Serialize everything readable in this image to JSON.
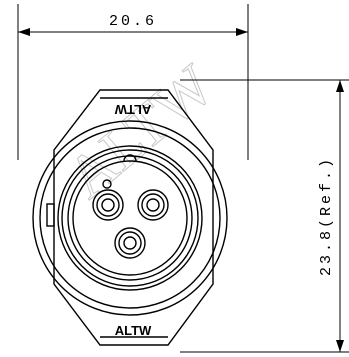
{
  "watermark": "ALTW",
  "dimensions": {
    "width_label": "20.6",
    "height_label": "23.8(Ref.)"
  },
  "brand": {
    "top_mark": "ALTW",
    "bottom_mark": "ALTW"
  },
  "connector": {
    "pin_count": 3
  }
}
